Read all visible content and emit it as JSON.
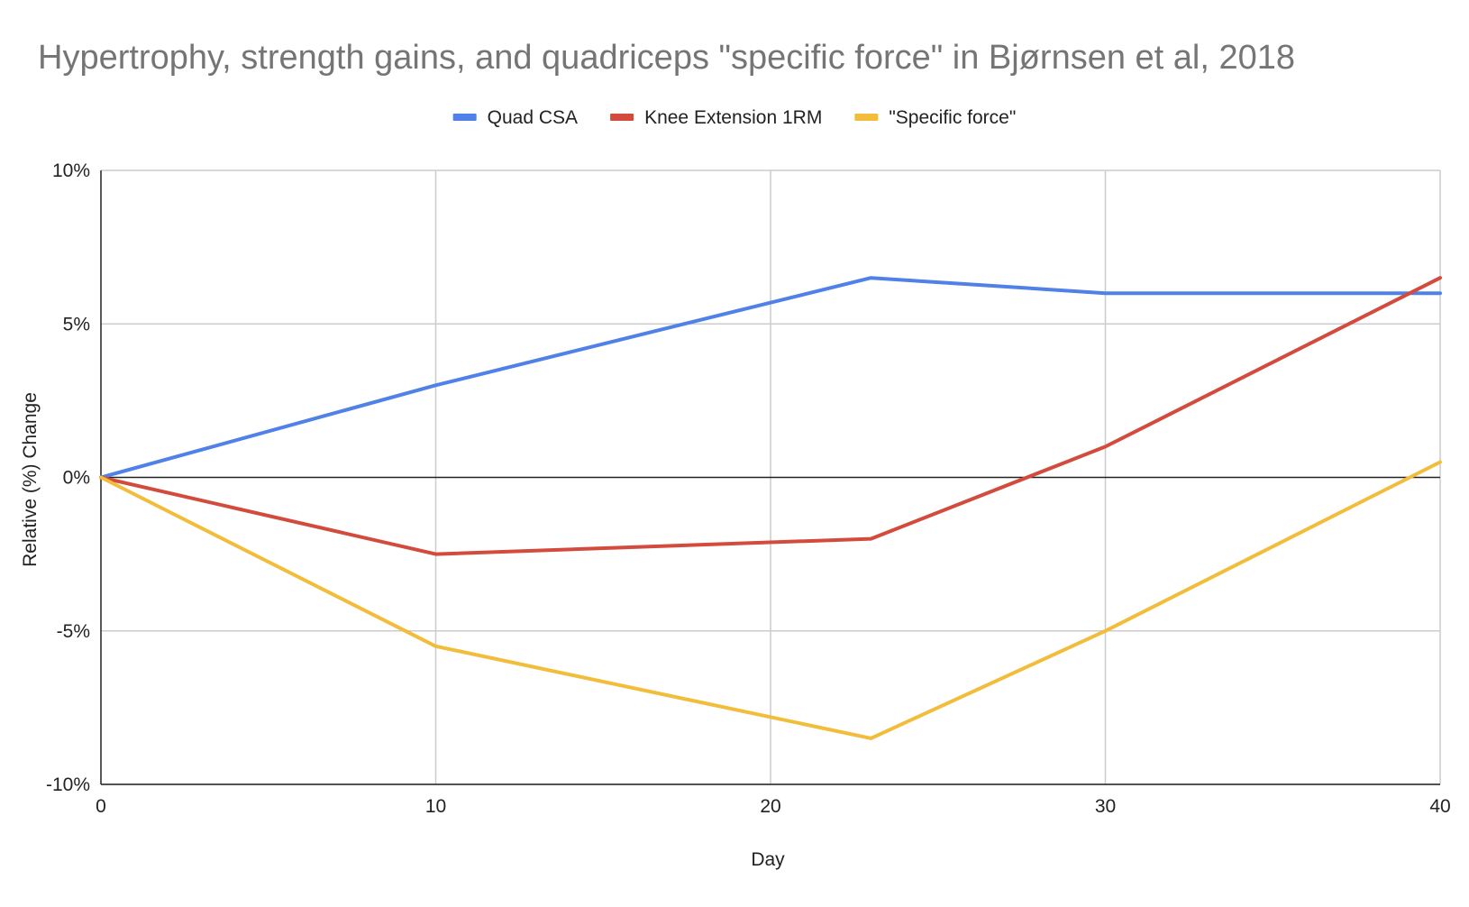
{
  "chart_data": {
    "type": "line",
    "title": "Hypertrophy, strength gains, and quadriceps \"specific force\" in Bjørnsen et al, 2018",
    "xlabel": "Day",
    "ylabel": "Relative (%) Change",
    "xlim": [
      0,
      40
    ],
    "ylim": [
      -10,
      10
    ],
    "x_ticks": [
      0,
      10,
      20,
      30,
      40
    ],
    "x_tick_labels": [
      "0",
      "10",
      "20",
      "30",
      "40"
    ],
    "y_ticks": [
      10,
      5,
      0,
      -5,
      -10
    ],
    "y_tick_labels": [
      "10%",
      "5%",
      "0%",
      "-5%",
      "-10%"
    ],
    "grid": true,
    "legend_position": "top",
    "x": [
      0,
      10,
      23,
      30,
      40
    ],
    "series": [
      {
        "name": "Quad CSA",
        "color": "#4f81e8",
        "values": [
          0,
          3,
          6.5,
          6,
          6
        ]
      },
      {
        "name": "Knee Extension 1RM",
        "color": "#d34b3c",
        "values": [
          0,
          -2.5,
          -2,
          1,
          6.5
        ]
      },
      {
        "name": "\"Specific force\"",
        "color": "#f1bd3a",
        "values": [
          0,
          -5.5,
          -8.5,
          -5,
          0.5
        ]
      }
    ]
  }
}
